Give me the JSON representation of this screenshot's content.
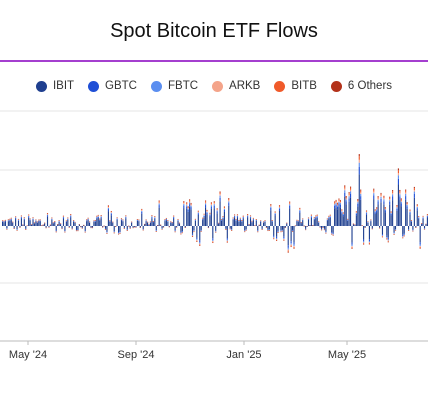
{
  "chart_data": {
    "type": "bar",
    "title": "Spot Bitcoin ETF Flows",
    "x_tick_labels": [
      "May '24",
      "Sep '24",
      "Jan '25",
      "May '25"
    ],
    "y_grid_levels": [
      1000,
      0,
      -1000
    ],
    "grid": true,
    "legend_placement": "top-center",
    "series": [
      {
        "name": "IBIT",
        "color": "#1f3f8f"
      },
      {
        "name": "GBTC",
        "color": "#1f4fd6"
      },
      {
        "name": "FBTC",
        "color": "#5b8ef0"
      },
      {
        "name": "ARKB",
        "color": "#f4a48a"
      },
      {
        "name": "BITB",
        "color": "#f05a2a"
      },
      {
        "name": "6 Others",
        "color": "#b3321a"
      }
    ]
  }
}
